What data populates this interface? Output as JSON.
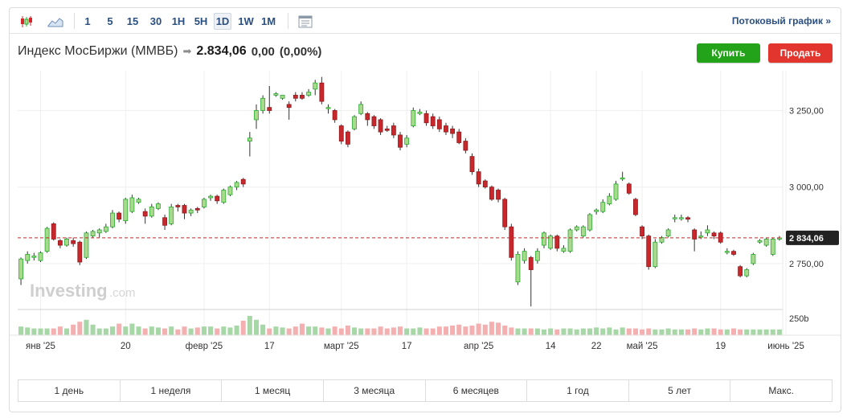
{
  "toolbar": {
    "icons": [
      "candlestick-icon",
      "area-chart-icon",
      "indicators-icon"
    ],
    "intervals": [
      "1",
      "5",
      "15",
      "30",
      "1H",
      "5H",
      "1D",
      "1W",
      "1M"
    ],
    "active_interval": "1D",
    "stream_label": "Потоковый график",
    "stream_chevron": "»"
  },
  "header": {
    "title": "Индекс МосБиржи (MMBБ)",
    "arrow": "➡",
    "price": "2.834,06",
    "change": "0,00",
    "change_pct": "(0,00%)"
  },
  "buttons": {
    "buy": "Купить",
    "sell": "Продать"
  },
  "colors": {
    "up": "#27ad2f",
    "up_fill": "#a9d98c",
    "down": "#d6272d",
    "down_fill": "#c9272c",
    "last_price_bg": "#222222",
    "volume": "#f4b0b0",
    "volume_up": "#a7d7a7"
  },
  "watermark": {
    "brand": "Investing",
    "suffix": ".com"
  },
  "chart_data": {
    "type": "candlestick",
    "y_ticks": [
      "3 250,00",
      "3 000,00",
      "2 750,00"
    ],
    "y_tick_values": [
      3250,
      3000,
      2750
    ],
    "ylim": [
      2600,
      3380
    ],
    "last_price": 2834.06,
    "last_price_label": "2 834,06",
    "volume_label": "250b",
    "x_tick_labels": [
      "янв '25",
      "20",
      "февр '25",
      "17",
      "март '25",
      "17",
      "апр '25",
      "14",
      "22",
      "май '25",
      "19",
      "июнь '25"
    ],
    "x_tick_index": [
      3,
      16,
      28,
      38,
      49,
      59,
      70,
      81,
      88,
      95,
      107,
      117
    ],
    "candles": [
      [
        2700,
        2765,
        2680,
        2770
      ],
      [
        2760,
        2780,
        2750,
        2790
      ],
      [
        2770,
        2775,
        2760,
        2785
      ],
      [
        2760,
        2785,
        2755,
        2790
      ],
      [
        2790,
        2865,
        2785,
        2870
      ],
      [
        2880,
        2830,
        2825,
        2885
      ],
      [
        2825,
        2810,
        2800,
        2830
      ],
      [
        2810,
        2830,
        2805,
        2835
      ],
      [
        2825,
        2815,
        2805,
        2835
      ],
      [
        2820,
        2755,
        2745,
        2825
      ],
      [
        2770,
        2850,
        2765,
        2855
      ],
      [
        2840,
        2855,
        2835,
        2860
      ],
      [
        2850,
        2860,
        2835,
        2865
      ],
      [
        2855,
        2870,
        2850,
        2880
      ],
      [
        2870,
        2915,
        2865,
        2925
      ],
      [
        2915,
        2895,
        2885,
        2920
      ],
      [
        2890,
        2960,
        2880,
        2965
      ],
      [
        2920,
        2965,
        2915,
        2975
      ],
      [
        2950,
        2960,
        2945,
        2965
      ],
      [
        2920,
        2905,
        2880,
        2930
      ],
      [
        2905,
        2935,
        2900,
        2945
      ],
      [
        2930,
        2945,
        2925,
        2950
      ],
      [
        2900,
        2875,
        2860,
        2910
      ],
      [
        2880,
        2935,
        2875,
        2945
      ],
      [
        2940,
        2935,
        2920,
        2945
      ],
      [
        2940,
        2915,
        2895,
        2945
      ],
      [
        2915,
        2925,
        2905,
        2930
      ],
      [
        2930,
        2925,
        2915,
        2935
      ],
      [
        2935,
        2960,
        2930,
        2965
      ],
      [
        2965,
        2970,
        2955,
        2975
      ],
      [
        2970,
        2955,
        2945,
        2975
      ],
      [
        2950,
        2990,
        2945,
        2995
      ],
      [
        2975,
        3000,
        2970,
        3005
      ],
      [
        3000,
        3015,
        2990,
        3020
      ],
      [
        3025,
        3010,
        3000,
        3030
      ],
      [
        3150,
        3160,
        3100,
        3180
      ],
      [
        3220,
        3250,
        3190,
        3270
      ],
      [
        3250,
        3290,
        3240,
        3300
      ],
      [
        3260,
        3250,
        3240,
        3330
      ],
      [
        3300,
        3305,
        3295,
        3310
      ],
      [
        3290,
        3300,
        3285,
        3300
      ],
      [
        3270,
        3260,
        3220,
        3280
      ],
      [
        3300,
        3290,
        3280,
        3310
      ],
      [
        3300,
        3290,
        3285,
        3310
      ],
      [
        3300,
        3310,
        3295,
        3320
      ],
      [
        3320,
        3340,
        3300,
        3350
      ],
      [
        3340,
        3280,
        3270,
        3360
      ],
      [
        3260,
        3260,
        3240,
        3270
      ],
      [
        3250,
        3220,
        3210,
        3255
      ],
      [
        3200,
        3150,
        3140,
        3205
      ],
      [
        3180,
        3140,
        3130,
        3185
      ],
      [
        3190,
        3230,
        3185,
        3235
      ],
      [
        3240,
        3270,
        3235,
        3280
      ],
      [
        3240,
        3220,
        3200,
        3245
      ],
      [
        3230,
        3200,
        3190,
        3235
      ],
      [
        3220,
        3180,
        3170,
        3225
      ],
      [
        3190,
        3185,
        3180,
        3200
      ],
      [
        3200,
        3170,
        3160,
        3210
      ],
      [
        3170,
        3130,
        3120,
        3180
      ],
      [
        3140,
        3160,
        3130,
        3170
      ],
      [
        3200,
        3250,
        3195,
        3260
      ],
      [
        3240,
        3245,
        3235,
        3255
      ],
      [
        3240,
        3210,
        3200,
        3250
      ],
      [
        3230,
        3200,
        3190,
        3240
      ],
      [
        3220,
        3190,
        3180,
        3230
      ],
      [
        3200,
        3180,
        3170,
        3210
      ],
      [
        3190,
        3175,
        3160,
        3200
      ],
      [
        3180,
        3145,
        3140,
        3190
      ],
      [
        3150,
        3120,
        3110,
        3160
      ],
      [
        3100,
        3050,
        3040,
        3110
      ],
      [
        3050,
        3010,
        3000,
        3060
      ],
      [
        3020,
        3000,
        2995,
        3025
      ],
      [
        3000,
        2960,
        2955,
        3005
      ],
      [
        2990,
        2960,
        2950,
        2995
      ],
      [
        2960,
        2870,
        2860,
        2965
      ],
      [
        2870,
        2770,
        2760,
        2880
      ],
      [
        2690,
        2780,
        2680,
        2790
      ],
      [
        2760,
        2790,
        2750,
        2800
      ],
      [
        2770,
        2730,
        2610,
        2775
      ],
      [
        2760,
        2790,
        2750,
        2800
      ],
      [
        2810,
        2850,
        2800,
        2855
      ],
      [
        2800,
        2840,
        2795,
        2845
      ],
      [
        2840,
        2800,
        2790,
        2845
      ],
      [
        2790,
        2800,
        2785,
        2810
      ],
      [
        2790,
        2860,
        2785,
        2865
      ],
      [
        2860,
        2870,
        2855,
        2875
      ],
      [
        2840,
        2870,
        2835,
        2875
      ],
      [
        2860,
        2910,
        2855,
        2915
      ],
      [
        2920,
        2925,
        2910,
        2930
      ],
      [
        2920,
        2950,
        2915,
        2960
      ],
      [
        2945,
        2970,
        2940,
        2980
      ],
      [
        2960,
        3010,
        2955,
        3020
      ],
      [
        3030,
        3030,
        3020,
        3050
      ],
      [
        3010,
        2980,
        2975,
        3015
      ],
      [
        2960,
        2910,
        2905,
        2965
      ],
      [
        2870,
        2840,
        2830,
        2875
      ],
      [
        2840,
        2740,
        2730,
        2845
      ],
      [
        2740,
        2820,
        2735,
        2830
      ],
      [
        2820,
        2835,
        2815,
        2840
      ],
      [
        2840,
        2860,
        2835,
        2865
      ],
      [
        2900,
        2900,
        2885,
        2910
      ],
      [
        2900,
        2900,
        2890,
        2910
      ],
      [
        2900,
        2895,
        2885,
        2905
      ],
      [
        2860,
        2830,
        2790,
        2865
      ],
      [
        2840,
        2840,
        2830,
        2855
      ],
      [
        2850,
        2860,
        2840,
        2875
      ],
      [
        2850,
        2840,
        2830,
        2855
      ],
      [
        2850,
        2820,
        2815,
        2855
      ],
      [
        2790,
        2790,
        2780,
        2800
      ],
      [
        2790,
        2780,
        2775,
        2795
      ],
      [
        2740,
        2710,
        2705,
        2745
      ],
      [
        2710,
        2730,
        2705,
        2735
      ],
      [
        2750,
        2780,
        2745,
        2785
      ],
      [
        2820,
        2825,
        2815,
        2830
      ],
      [
        2810,
        2830,
        2805,
        2835
      ],
      [
        2780,
        2830,
        2775,
        2835
      ],
      [
        2830,
        2834,
        2825,
        2840
      ]
    ],
    "volumes": [
      0.45,
      0.4,
      0.35,
      0.35,
      0.35,
      0.35,
      0.45,
      0.35,
      0.55,
      0.7,
      0.8,
      0.55,
      0.35,
      0.35,
      0.45,
      0.6,
      0.45,
      0.6,
      0.45,
      0.35,
      0.45,
      0.4,
      0.35,
      0.45,
      0.3,
      0.45,
      0.35,
      0.4,
      0.45,
      0.45,
      0.35,
      0.45,
      0.4,
      0.5,
      0.75,
      1.0,
      0.8,
      0.55,
      0.35,
      0.45,
      0.4,
      0.35,
      0.45,
      0.6,
      0.45,
      0.45,
      0.4,
      0.35,
      0.45,
      0.35,
      0.5,
      0.4,
      0.35,
      0.35,
      0.35,
      0.45,
      0.35,
      0.4,
      0.45,
      0.35,
      0.35,
      0.4,
      0.35,
      0.35,
      0.45,
      0.45,
      0.5,
      0.55,
      0.45,
      0.5,
      0.6,
      0.55,
      0.7,
      0.65,
      0.5,
      0.4,
      0.35,
      0.35,
      0.35,
      0.35,
      0.3,
      0.35,
      0.3,
      0.35,
      0.35,
      0.3,
      0.35,
      0.35,
      0.4,
      0.35,
      0.4,
      0.3,
      0.4,
      0.35,
      0.35,
      0.3,
      0.35,
      0.3,
      0.3,
      0.35,
      0.3,
      0.3,
      0.3,
      0.35,
      0.3,
      0.35,
      0.35,
      0.3,
      0.3,
      0.35,
      0.3,
      0.3,
      0.3,
      0.3,
      0.3,
      0.3,
      0.3
    ]
  },
  "ranges": [
    "1 день",
    "1 неделя",
    "1 месяц",
    "3 месяца",
    "6 месяцев",
    "1 год",
    "5 лет",
    "Макс."
  ]
}
